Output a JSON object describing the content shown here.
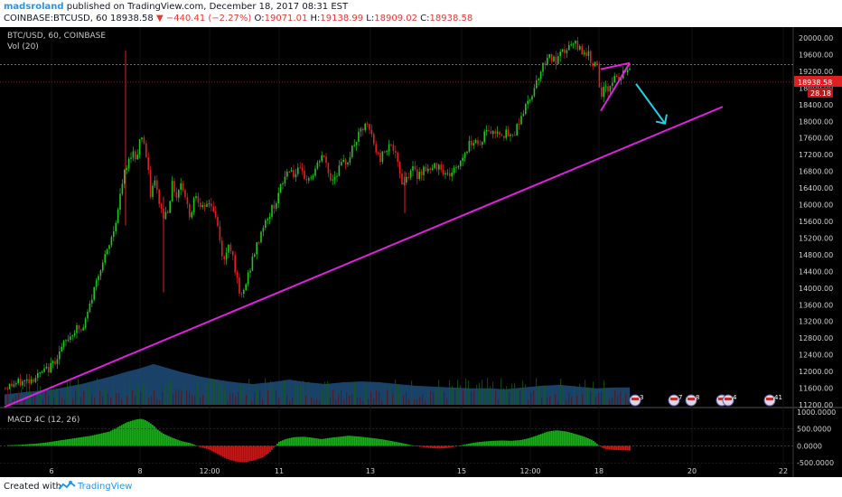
{
  "header": {
    "author": "madsroland",
    "published": "published on TradingView.com, December 18, 2017 08:31 EST",
    "symbol_line": "COINBASE:BTCUSD, 60",
    "last": "18938.58",
    "change": "−440.41 (−2.27%)",
    "o_label": "O:",
    "o": "19071.01",
    "h_label": "H:",
    "h": "19138.99",
    "l_label": "L:",
    "l": "18909.02",
    "c_label": "C:",
    "c": "18938.58"
  },
  "footer": {
    "created": "Created with",
    "brand": "TradingView"
  },
  "colors": {
    "up": "#21c421",
    "down": "#e02020",
    "trend": "#e020e0",
    "arrow": "#22d0e0",
    "volume": "#1f4e7a",
    "background": "#000000"
  },
  "chart_data": [
    {
      "type": "candlestick",
      "title": "BTC/USD, 60, COINBASE",
      "legend": "Vol (20)",
      "y_ticks": [
        "20000.00",
        "19600.00",
        "19200.00",
        "18800.00",
        "18400.00",
        "18000.00",
        "17600.00",
        "17200.00",
        "16800.00",
        "16400.00",
        "16000.00",
        "15600.00",
        "15200.00",
        "14800.00",
        "14400.00",
        "14000.00",
        "13600.00",
        "13200.00",
        "12800.00",
        "12400.00",
        "12000.00",
        "11600.00",
        "11200.00"
      ],
      "ylim": [
        11200,
        20000
      ],
      "x_ticks": [
        "6",
        "8",
        "12:00",
        "11",
        "13",
        "15",
        "12:00",
        "18",
        "20",
        "22"
      ],
      "x_tick_pos": [
        57,
        155,
        232,
        309,
        410,
        511,
        587,
        663,
        766,
        867
      ],
      "last_price_label": "18938.58",
      "last_volume_label": "28.18",
      "trendline": [
        [
          5,
          11150
        ],
        [
          800,
          18350
        ]
      ],
      "channel_lines": [
        [
          665,
          19250
        ],
        [
          697,
          19400
        ],
        [
          665,
          18250
        ]
      ],
      "arrow": [
        [
          704,
          18900
        ],
        [
          736,
          17950
        ]
      ],
      "price_path": [
        [
          5,
          11620
        ],
        [
          15,
          11700
        ],
        [
          25,
          11750
        ],
        [
          35,
          11830
        ],
        [
          45,
          11950
        ],
        [
          55,
          12100
        ],
        [
          62,
          12350
        ],
        [
          70,
          12650
        ],
        [
          78,
          12900
        ],
        [
          85,
          13050
        ],
        [
          90,
          12950
        ],
        [
          95,
          13300
        ],
        [
          100,
          13700
        ],
        [
          105,
          14100
        ],
        [
          110,
          14500
        ],
        [
          115,
          14700
        ],
        [
          120,
          15000
        ],
        [
          125,
          15400
        ],
        [
          130,
          15900
        ],
        [
          133,
          16300
        ],
        [
          136,
          16700
        ],
        [
          140,
          16900
        ],
        [
          145,
          17300
        ],
        [
          150,
          17100
        ],
        [
          153,
          17500
        ],
        [
          157,
          17700
        ],
        [
          160,
          17300
        ],
        [
          163,
          16800
        ],
        [
          166,
          16200
        ],
        [
          170,
          16600
        ],
        [
          175,
          16100
        ],
        [
          180,
          15700
        ],
        [
          185,
          15900
        ],
        [
          190,
          16500
        ],
        [
          195,
          16200
        ],
        [
          200,
          16600
        ],
        [
          205,
          16100
        ],
        [
          210,
          15700
        ],
        [
          215,
          16300
        ],
        [
          220,
          16100
        ],
        [
          225,
          15800
        ],
        [
          230,
          16100
        ],
        [
          235,
          15900
        ],
        [
          240,
          15500
        ],
        [
          244,
          14900
        ],
        [
          248,
          14600
        ],
        [
          252,
          15100
        ],
        [
          256,
          14900
        ],
        [
          260,
          14400
        ],
        [
          265,
          13700
        ],
        [
          270,
          14000
        ],
        [
          275,
          14400
        ],
        [
          280,
          14800
        ],
        [
          285,
          15100
        ],
        [
          290,
          15500
        ],
        [
          295,
          15600
        ],
        [
          300,
          15900
        ],
        [
          305,
          16100
        ],
        [
          310,
          16400
        ],
        [
          315,
          16700
        ],
        [
          320,
          16900
        ],
        [
          325,
          16700
        ],
        [
          330,
          16800
        ],
        [
          335,
          16700
        ],
        [
          340,
          16600
        ],
        [
          345,
          16700
        ],
        [
          350,
          16900
        ],
        [
          355,
          17200
        ],
        [
          360,
          17000
        ],
        [
          365,
          16600
        ],
        [
          370,
          16700
        ],
        [
          375,
          16900
        ],
        [
          380,
          17000
        ],
        [
          385,
          17100
        ],
        [
          390,
          17400
        ],
        [
          395,
          17600
        ],
        [
          400,
          17800
        ],
        [
          405,
          17900
        ],
        [
          410,
          17700
        ],
        [
          415,
          17300
        ],
        [
          420,
          17100
        ],
        [
          425,
          17300
        ],
        [
          430,
          17500
        ],
        [
          435,
          17300
        ],
        [
          440,
          16900
        ],
        [
          445,
          16500
        ],
        [
          450,
          16700
        ],
        [
          455,
          16900
        ],
        [
          460,
          16700
        ],
        [
          465,
          16800
        ],
        [
          470,
          16900
        ],
        [
          475,
          16800
        ],
        [
          480,
          16900
        ],
        [
          485,
          17000
        ],
        [
          490,
          16800
        ],
        [
          495,
          16700
        ],
        [
          500,
          16800
        ],
        [
          505,
          16900
        ],
        [
          510,
          17100
        ],
        [
          515,
          17300
        ],
        [
          520,
          17500
        ],
        [
          525,
          17600
        ],
        [
          530,
          17400
        ],
        [
          535,
          17700
        ],
        [
          540,
          17800
        ],
        [
          545,
          17700
        ],
        [
          550,
          17800
        ],
        [
          555,
          17700
        ],
        [
          560,
          17700
        ],
        [
          565,
          17600
        ],
        [
          570,
          17800
        ],
        [
          575,
          18100
        ],
        [
          580,
          18300
        ],
        [
          585,
          18500
        ],
        [
          590,
          18800
        ],
        [
          595,
          19100
        ],
        [
          600,
          19300
        ],
        [
          605,
          19600
        ],
        [
          610,
          19500
        ],
        [
          615,
          19400
        ],
        [
          620,
          19600
        ],
        [
          625,
          19700
        ],
        [
          630,
          19800
        ],
        [
          635,
          19850
        ],
        [
          640,
          19750
        ],
        [
          645,
          19700
        ],
        [
          650,
          19600
        ],
        [
          655,
          19400
        ],
        [
          658,
          19500
        ],
        [
          661,
          19200
        ],
        [
          664,
          18400
        ],
        [
          667,
          18700
        ],
        [
          670,
          18900
        ],
        [
          673,
          18700
        ],
        [
          676,
          19000
        ],
        [
          680,
          19050
        ],
        [
          684,
          19000
        ],
        [
          688,
          19100
        ],
        [
          692,
          19200
        ],
        [
          696,
          19300
        ],
        [
          700,
          19350
        ]
      ],
      "volume_profile": [
        [
          5,
          0.12
        ],
        [
          30,
          0.15
        ],
        [
          60,
          0.18
        ],
        [
          90,
          0.24
        ],
        [
          120,
          0.32
        ],
        [
          140,
          0.38
        ],
        [
          155,
          0.42
        ],
        [
          170,
          0.47
        ],
        [
          180,
          0.44
        ],
        [
          200,
          0.38
        ],
        [
          220,
          0.33
        ],
        [
          240,
          0.29
        ],
        [
          260,
          0.26
        ],
        [
          280,
          0.24
        ],
        [
          300,
          0.26
        ],
        [
          320,
          0.29
        ],
        [
          340,
          0.26
        ],
        [
          360,
          0.24
        ],
        [
          380,
          0.26
        ],
        [
          400,
          0.27
        ],
        [
          420,
          0.26
        ],
        [
          440,
          0.24
        ],
        [
          460,
          0.22
        ],
        [
          480,
          0.21
        ],
        [
          500,
          0.2
        ],
        [
          520,
          0.19
        ],
        [
          540,
          0.19
        ],
        [
          560,
          0.18
        ],
        [
          580,
          0.2
        ],
        [
          600,
          0.22
        ],
        [
          620,
          0.23
        ],
        [
          640,
          0.21
        ],
        [
          660,
          0.19
        ],
        [
          680,
          0.2
        ],
        [
          697,
          0.2
        ]
      ],
      "event_markers": [
        {
          "x": 703,
          "label": "3"
        },
        {
          "x": 746,
          "label": "7"
        },
        {
          "x": 765,
          "label": "8"
        },
        {
          "x": 799,
          "label": "5"
        },
        {
          "x": 806,
          "label": "4"
        },
        {
          "x": 852,
          "label": "41"
        }
      ]
    },
    {
      "type": "histogram",
      "title": "MACD 4C (12, 26)",
      "y_ticks": [
        "1000.0000",
        "500.0000",
        "0.0000",
        "-500.0000"
      ],
      "ylim": [
        -600,
        1050
      ],
      "histogram": [
        [
          8,
          20
        ],
        [
          20,
          30
        ],
        [
          30,
          50
        ],
        [
          40,
          70
        ],
        [
          50,
          100
        ],
        [
          60,
          140
        ],
        [
          70,
          180
        ],
        [
          80,
          220
        ],
        [
          90,
          260
        ],
        [
          100,
          300
        ],
        [
          110,
          360
        ],
        [
          120,
          420
        ],
        [
          130,
          560
        ],
        [
          140,
          700
        ],
        [
          150,
          780
        ],
        [
          155,
          800
        ],
        [
          160,
          760
        ],
        [
          165,
          680
        ],
        [
          170,
          580
        ],
        [
          175,
          450
        ],
        [
          180,
          360
        ],
        [
          190,
          240
        ],
        [
          200,
          140
        ],
        [
          210,
          80
        ],
        [
          215,
          30
        ],
        [
          220,
          -30
        ],
        [
          230,
          -100
        ],
        [
          240,
          -240
        ],
        [
          250,
          -380
        ],
        [
          260,
          -460
        ],
        [
          270,
          -480
        ],
        [
          280,
          -430
        ],
        [
          290,
          -340
        ],
        [
          298,
          -180
        ],
        [
          303,
          -20
        ],
        [
          308,
          120
        ],
        [
          315,
          200
        ],
        [
          325,
          260
        ],
        [
          335,
          270
        ],
        [
          345,
          240
        ],
        [
          355,
          200
        ],
        [
          365,
          240
        ],
        [
          375,
          270
        ],
        [
          385,
          300
        ],
        [
          395,
          280
        ],
        [
          405,
          250
        ],
        [
          415,
          220
        ],
        [
          425,
          180
        ],
        [
          435,
          130
        ],
        [
          445,
          80
        ],
        [
          455,
          20
        ],
        [
          465,
          -30
        ],
        [
          475,
          -60
        ],
        [
          485,
          -80
        ],
        [
          495,
          -60
        ],
        [
          505,
          -10
        ],
        [
          515,
          50
        ],
        [
          525,
          100
        ],
        [
          535,
          130
        ],
        [
          545,
          150
        ],
        [
          555,
          160
        ],
        [
          565,
          150
        ],
        [
          575,
          170
        ],
        [
          585,
          230
        ],
        [
          595,
          320
        ],
        [
          605,
          420
        ],
        [
          615,
          460
        ],
        [
          625,
          430
        ],
        [
          635,
          360
        ],
        [
          645,
          280
        ],
        [
          655,
          170
        ],
        [
          660,
          60
        ],
        [
          665,
          -40
        ],
        [
          670,
          -100
        ],
        [
          680,
          -120
        ],
        [
          690,
          -130
        ],
        [
          697,
          -140
        ]
      ]
    }
  ]
}
